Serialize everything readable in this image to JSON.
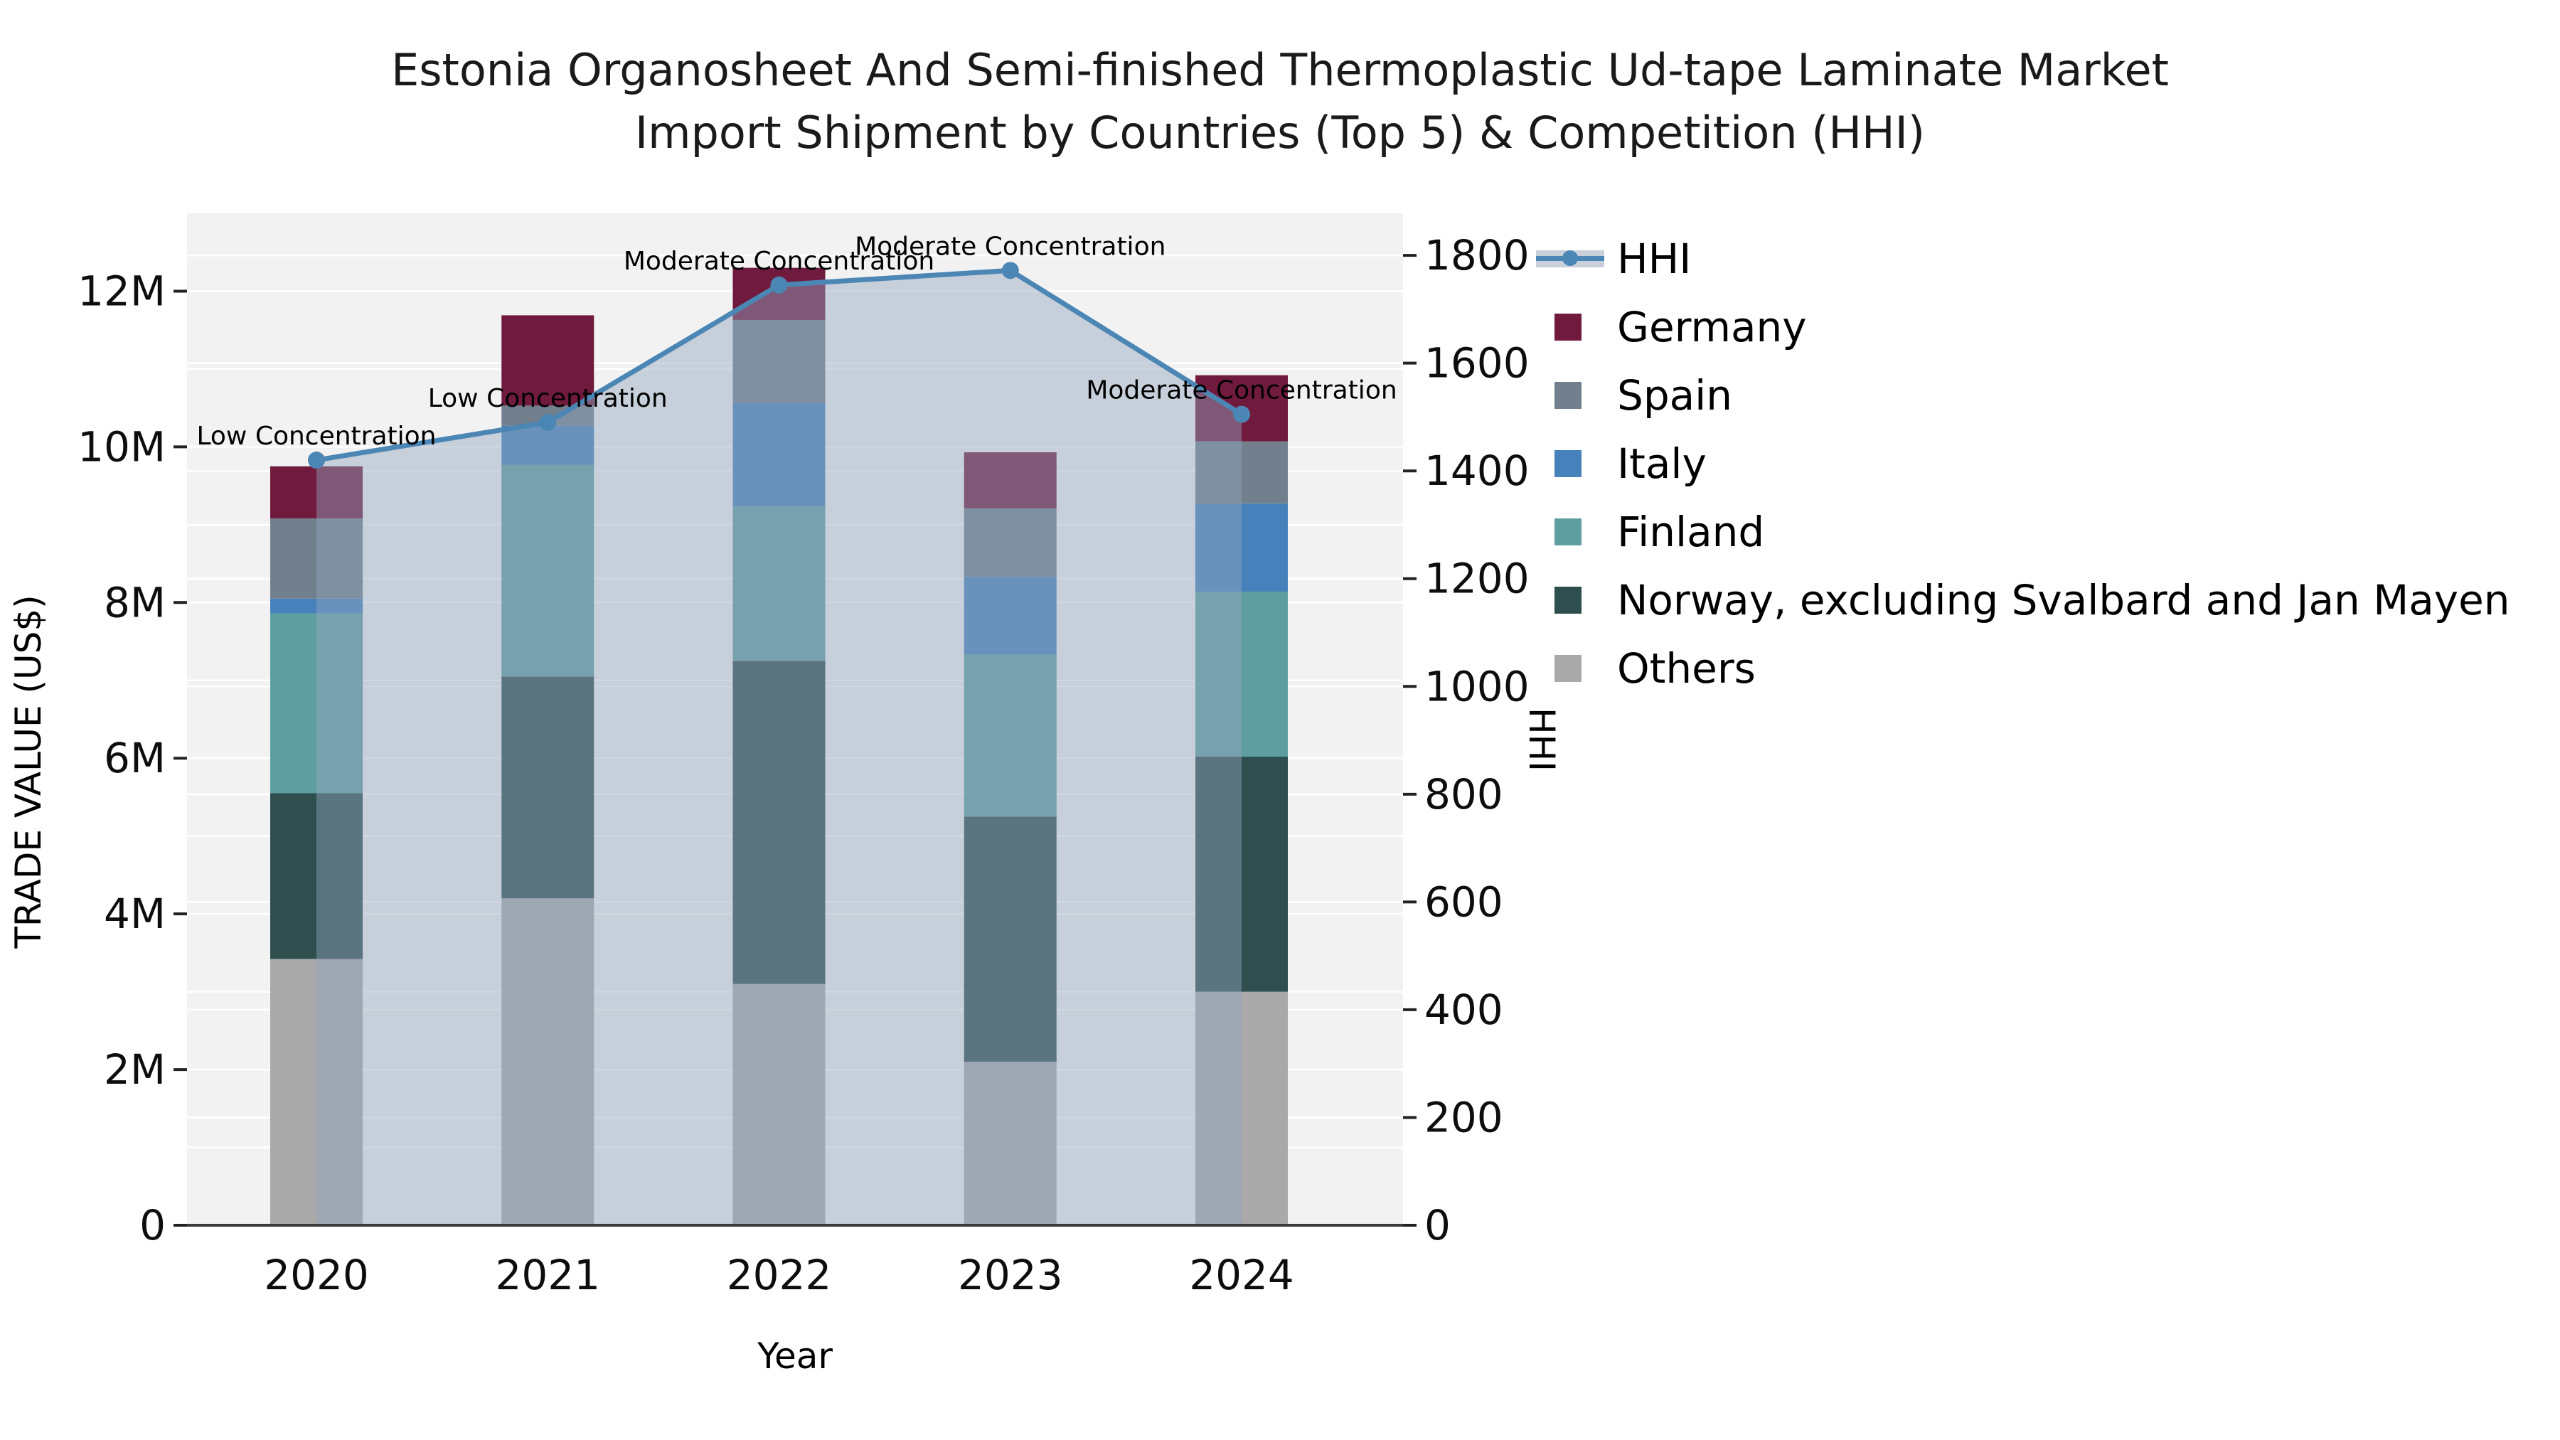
{
  "title": {
    "line1": "Estonia Organosheet And Semi-finished Thermoplastic Ud-tape Laminate Market",
    "line2": "Import Shipment by Countries (Top 5) & Competition (HHI)"
  },
  "axes": {
    "x_label": "Year",
    "y_left_label": "TRADE VALUE (US$)",
    "y_right_label": "HHI"
  },
  "chart_data": {
    "type": "combo: stacked-bar (left axis) + line with area fill (right axis)",
    "categories": [
      "2020",
      "2021",
      "2022",
      "2023",
      "2024"
    ],
    "bar_unit": "million US$ trade value",
    "series": [
      {
        "name": "Others",
        "color": "#A9A9A9",
        "values": [
          3.42,
          4.2,
          3.1,
          2.1,
          3.0
        ]
      },
      {
        "name": "Norway, excluding Svalbard and Jan Mayen",
        "color": "#2F4F4F",
        "values": [
          2.13,
          2.85,
          4.15,
          3.15,
          3.02
        ]
      },
      {
        "name": "Finland",
        "color": "#5F9EA0",
        "values": [
          2.31,
          2.72,
          1.99,
          2.08,
          2.12
        ]
      },
      {
        "name": "Italy",
        "color": "#4681BC",
        "values": [
          0.19,
          0.5,
          1.32,
          1.0,
          1.13
        ]
      },
      {
        "name": "Spain",
        "color": "#72808E",
        "values": [
          1.03,
          0.26,
          1.07,
          0.88,
          0.8
        ]
      },
      {
        "name": "Germany",
        "color": "#701B3E",
        "values": [
          0.67,
          1.16,
          0.67,
          0.72,
          0.85
        ]
      }
    ],
    "bar_totals_m": [
      9.75,
      11.69,
      12.3,
      9.93,
      10.92
    ],
    "line_series": {
      "name": "HHI",
      "axis": "right",
      "color": "#4C86B4",
      "area_fill": "rgba(147,164,188,0.45)",
      "values": [
        1420,
        1490,
        1745,
        1772,
        1505
      ]
    },
    "annotations": [
      "Low Concentration",
      "Low Concentration",
      "Moderate Concentration",
      "Moderate Concentration",
      "Moderate Concentration"
    ],
    "ylim_left_millions": [
      0,
      13
    ],
    "ylim_right": [
      0,
      1878
    ],
    "y_left_tick_values_m": [
      0,
      2,
      4,
      6,
      8,
      10,
      12
    ],
    "y_left_tick_labels": [
      "0",
      "2M",
      "4M",
      "6M",
      "8M",
      "10M",
      "12M"
    ],
    "y_right_tick_values": [
      0,
      200,
      400,
      600,
      800,
      1000,
      1200,
      1400,
      1600,
      1800
    ],
    "y_right_tick_labels": [
      "0",
      "200",
      "400",
      "600",
      "800",
      "1000",
      "1200",
      "1400",
      "1600",
      "1800"
    ],
    "grid": "white gridlines every 1M (left axis) and every 200 (right axis) on light gray plot background",
    "legend_position": "upper right, outside plot"
  },
  "legend": [
    {
      "label": "HHI",
      "type": "line",
      "color": "#4C86B4",
      "band": "#C9D0DC"
    },
    {
      "label": "Germany",
      "type": "swatch",
      "color": "#701B3E"
    },
    {
      "label": "Spain",
      "type": "swatch",
      "color": "#72808E"
    },
    {
      "label": "Italy",
      "type": "swatch",
      "color": "#4681BC"
    },
    {
      "label": "Finland",
      "type": "swatch",
      "color": "#5F9EA0"
    },
    {
      "label": "Norway, excluding Svalbard and Jan Mayen",
      "type": "swatch",
      "color": "#2F4F4F"
    },
    {
      "label": "Others",
      "type": "swatch",
      "color": "#A9A9A9"
    }
  ],
  "colors": {
    "figure_bg": "#FFFFFF",
    "plot_bg": "#F2F2F2",
    "gridline": "#FFFFFF",
    "spine": "#3C3C3C",
    "text": "#000000"
  }
}
